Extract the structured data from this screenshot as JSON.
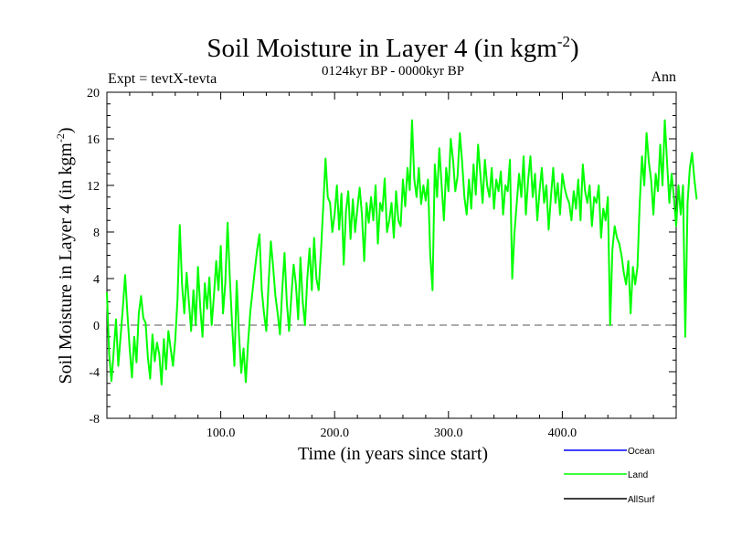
{
  "chart_data": {
    "type": "line",
    "title": "Soil Moisture in Layer 4 (in kgm",
    "title_sup": "-2",
    "title_close": ")",
    "subtitle": "0124kyr BP - 0000kyr BP",
    "expt_label": "Expt = tevtX-tevta",
    "season_label": "Ann",
    "xlabel": "Time (in years since start)",
    "ylabel": "Soil Moisture in Layer 4 (in kgm",
    "ylabel_sup": "-2",
    "ylabel_close": ")",
    "xlim": [
      0,
      500
    ],
    "ylim": [
      -8,
      20
    ],
    "x_ticks": [
      {
        "value": 100,
        "label": "100.0"
      },
      {
        "value": 200,
        "label": "200.0"
      },
      {
        "value": 300,
        "label": "300.0"
      },
      {
        "value": 400,
        "label": "400.0"
      }
    ],
    "y_ticks": [
      {
        "value": -8,
        "label": "-8"
      },
      {
        "value": -4,
        "label": "-4"
      },
      {
        "value": 0,
        "label": "0"
      },
      {
        "value": 4,
        "label": "4"
      },
      {
        "value": 8,
        "label": "8"
      },
      {
        "value": 12,
        "label": "12"
      },
      {
        "value": 16,
        "label": "16"
      },
      {
        "value": 20,
        "label": "20"
      }
    ],
    "zero_line": 0,
    "legend": [
      {
        "name": "Ocean",
        "color": "#0000ff"
      },
      {
        "name": "Land",
        "color": "#00ff00"
      },
      {
        "name": "AllSurf",
        "color": "#000000"
      }
    ],
    "series": [
      {
        "name": "Land",
        "color": "#00ff00",
        "x_start": 0,
        "x_step": 2,
        "values": [
          2.8,
          -2.5,
          -4.8,
          -2.2,
          0.5,
          -3.5,
          -1.0,
          1.5,
          4.3,
          1.0,
          -2.0,
          -4.5,
          -1.0,
          -3.2,
          1.0,
          2.5,
          0.6,
          0.2,
          -2.8,
          -4.6,
          -0.8,
          -3.1,
          -1.5,
          -2.5,
          -5.1,
          -1.2,
          -3.8,
          -0.5,
          -2.0,
          -3.5,
          -1.3,
          2.2,
          8.6,
          3.5,
          1.0,
          4.5,
          2.0,
          -0.5,
          3.0,
          0.0,
          5.0,
          1.5,
          -1.0,
          3.6,
          1.4,
          4.1,
          0.0,
          2.5,
          5.5,
          3.0,
          6.8,
          1.0,
          3.6,
          8.8,
          4.0,
          0.0,
          -3.5,
          3.8,
          -0.8,
          -4.1,
          -2.0,
          -4.9,
          -1.5,
          1.2,
          3.0,
          4.8,
          6.5,
          7.8,
          3.0,
          1.0,
          -0.5,
          3.6,
          7.2,
          5.0,
          2.5,
          1.0,
          -0.8,
          3.0,
          6.2,
          2.0,
          -0.5,
          2.5,
          5.2,
          3.5,
          0.5,
          5.8,
          2.0,
          0.0,
          4.0,
          6.6,
          3.0,
          7.5,
          4.0,
          3.0,
          6.3,
          10.2,
          14.3,
          11.0,
          10.5,
          8.0,
          9.5,
          12.0,
          8.2,
          11.3,
          5.2,
          9.8,
          11.5,
          7.4,
          10.8,
          8.0,
          10.0,
          11.8,
          9.5,
          5.5,
          10.5,
          8.8,
          11.0,
          9.0,
          12.0,
          7.0,
          10.5,
          9.8,
          12.6,
          8.0,
          9.0,
          10.5,
          7.5,
          11.5,
          9.0,
          8.5,
          12.5,
          10.2,
          13.5,
          11.6,
          17.6,
          12.5,
          11.0,
          13.5,
          10.4,
          12.0,
          10.7,
          12.5,
          6.0,
          3.0,
          13.8,
          11.0,
          15.2,
          12.0,
          9.0,
          13.5,
          11.5,
          16.0,
          14.2,
          11.5,
          12.8,
          16.5,
          14.0,
          11.0,
          9.5,
          12.5,
          10.0,
          13.8,
          11.2,
          15.5,
          13.0,
          10.5,
          14.2,
          12.0,
          11.0,
          13.5,
          10.0,
          12.5,
          11.5,
          13.2,
          9.5,
          12.0,
          11.5,
          14.2,
          4.0,
          8.0,
          10.5,
          13.0,
          11.0,
          14.5,
          9.5,
          12.5,
          14.5,
          11.0,
          13.0,
          9.0,
          11.5,
          13.5,
          10.5,
          12.0,
          8.2,
          11.0,
          13.5,
          10.5,
          12.2,
          9.5,
          13.0,
          11.8,
          11.0,
          10.5,
          9.0,
          11.5,
          10.0,
          12.5,
          9.0,
          13.8,
          11.5,
          10.5,
          12.0,
          8.5,
          11.0,
          10.5,
          12.0,
          7.5,
          10.0,
          9.0,
          11.0,
          0.0,
          6.5,
          8.5,
          7.5,
          7.0,
          6.0,
          4.5,
          3.5,
          5.5,
          1.0,
          5.0,
          3.5,
          5.0,
          10.5,
          14.5,
          12.0,
          16.5,
          14.0,
          12.5,
          9.5,
          13.0,
          11.5,
          15.5,
          12.0,
          17.6,
          14.0,
          10.5,
          13.0,
          11.0,
          8.5,
          12.0,
          9.5,
          12.0,
          -1.0,
          10.5,
          13.5,
          14.8,
          12.5,
          10.8
        ]
      }
    ]
  }
}
